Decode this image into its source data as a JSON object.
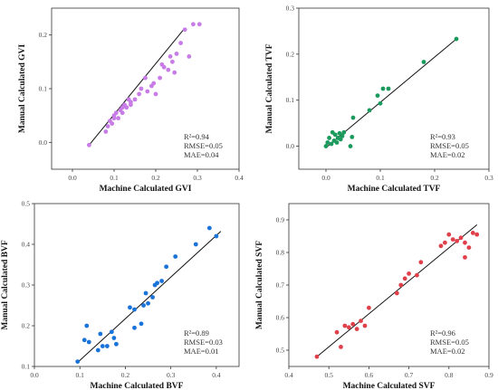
{
  "chart_data": [
    {
      "type": "scatter",
      "xlabel": "Machine Calculated GVI",
      "ylabel": "Manual Calculated GVI",
      "xlim": [
        -0.05,
        0.4
      ],
      "ylim": [
        -0.05,
        0.25
      ],
      "xticks": [
        "0.0",
        "0.1",
        "0.2",
        "0.3",
        "0.4"
      ],
      "xtick_values": [
        0.0,
        0.1,
        0.2,
        0.3,
        0.4
      ],
      "yticks": [
        "0.0",
        "0.1",
        "0.2"
      ],
      "ytick_values": [
        0.0,
        0.1,
        0.2
      ],
      "color": "#c77ce6",
      "stats": [
        "R²=0.94",
        "RMSE=0.05",
        "MAE=0.04"
      ],
      "fit_line": {
        "x": [
          0.04,
          0.27
        ],
        "y": [
          -0.005,
          0.213
        ]
      },
      "points": [
        [
          0.04,
          -0.005
        ],
        [
          0.08,
          0.02
        ],
        [
          0.085,
          0.03
        ],
        [
          0.09,
          0.04
        ],
        [
          0.095,
          0.035
        ],
        [
          0.1,
          0.045
        ],
        [
          0.1,
          0.05
        ],
        [
          0.105,
          0.055
        ],
        [
          0.11,
          0.045
        ],
        [
          0.115,
          0.06
        ],
        [
          0.12,
          0.065
        ],
        [
          0.12,
          0.055
        ],
        [
          0.125,
          0.07
        ],
        [
          0.13,
          0.065
        ],
        [
          0.135,
          0.08
        ],
        [
          0.14,
          0.075
        ],
        [
          0.14,
          0.07
        ],
        [
          0.15,
          0.08
        ],
        [
          0.16,
          0.09
        ],
        [
          0.165,
          0.1
        ],
        [
          0.175,
          0.12
        ],
        [
          0.18,
          0.095
        ],
        [
          0.19,
          0.105
        ],
        [
          0.195,
          0.11
        ],
        [
          0.2,
          0.09
        ],
        [
          0.21,
          0.12
        ],
        [
          0.215,
          0.145
        ],
        [
          0.22,
          0.14
        ],
        [
          0.23,
          0.135
        ],
        [
          0.235,
          0.16
        ],
        [
          0.24,
          0.15
        ],
        [
          0.245,
          0.13
        ],
        [
          0.25,
          0.165
        ],
        [
          0.26,
          0.185
        ],
        [
          0.27,
          0.21
        ],
        [
          0.28,
          0.16
        ],
        [
          0.29,
          0.22
        ],
        [
          0.305,
          0.22
        ]
      ]
    },
    {
      "type": "scatter",
      "xlabel": "Machine Calculated TVF",
      "ylabel": "Manual Calculated TVF",
      "xlim": [
        -0.05,
        0.3
      ],
      "ylim": [
        -0.05,
        0.3
      ],
      "xticks": [
        "0.0",
        "0.1",
        "0.2",
        "0.3"
      ],
      "xtick_values": [
        0.0,
        0.1,
        0.2,
        0.3
      ],
      "yticks": [
        "0.0",
        "0.1",
        "0.2",
        "0.3"
      ],
      "ytick_values": [
        0.0,
        0.1,
        0.2,
        0.3
      ],
      "color": "#1a9a5c",
      "stats": [
        "R²=0.93",
        "RMSE=0.05",
        "MAE=0.02"
      ],
      "fit_line": {
        "x": [
          0.0,
          0.24
        ],
        "y": [
          -0.003,
          0.233
        ]
      },
      "points": [
        [
          0.0,
          0.0
        ],
        [
          0.003,
          0.008
        ],
        [
          0.006,
          0.018
        ],
        [
          0.01,
          0.005
        ],
        [
          0.012,
          0.03
        ],
        [
          0.015,
          0.012
        ],
        [
          0.017,
          0.025
        ],
        [
          0.02,
          0.008
        ],
        [
          0.022,
          0.018
        ],
        [
          0.025,
          0.028
        ],
        [
          0.027,
          0.015
        ],
        [
          0.03,
          0.022
        ],
        [
          0.033,
          0.03
        ],
        [
          0.045,
          0.0
        ],
        [
          0.048,
          0.02
        ],
        [
          0.05,
          0.062
        ],
        [
          0.08,
          0.078
        ],
        [
          0.095,
          0.11
        ],
        [
          0.1,
          0.093
        ],
        [
          0.105,
          0.125
        ],
        [
          0.115,
          0.125
        ],
        [
          0.18,
          0.183
        ],
        [
          0.24,
          0.233
        ]
      ]
    },
    {
      "type": "scatter",
      "xlabel": "Machine Calculated BVF",
      "ylabel": "Manual Calculated BVF",
      "xlim": [
        0.0,
        0.45
      ],
      "ylim": [
        0.1,
        0.5
      ],
      "xticks": [
        "0.0",
        "0.1",
        "0.2",
        "0.3",
        "0.4"
      ],
      "xtick_values": [
        0.0,
        0.1,
        0.2,
        0.3,
        0.4
      ],
      "yticks": [
        "0.1",
        "0.2",
        "0.3",
        "0.4",
        "0.5"
      ],
      "ytick_values": [
        0.1,
        0.2,
        0.3,
        0.4,
        0.5
      ],
      "color": "#1a73d9",
      "stats": [
        "R²=0.89",
        "RMSE=0.03",
        "MAE=0.01"
      ],
      "fit_line": {
        "x": [
          0.095,
          0.41
        ],
        "y": [
          0.11,
          0.432
        ]
      },
      "points": [
        [
          0.095,
          0.112
        ],
        [
          0.11,
          0.165
        ],
        [
          0.115,
          0.2
        ],
        [
          0.12,
          0.16
        ],
        [
          0.14,
          0.14
        ],
        [
          0.145,
          0.18
        ],
        [
          0.15,
          0.15
        ],
        [
          0.16,
          0.15
        ],
        [
          0.17,
          0.185
        ],
        [
          0.175,
          0.17
        ],
        [
          0.18,
          0.155
        ],
        [
          0.21,
          0.245
        ],
        [
          0.22,
          0.195
        ],
        [
          0.22,
          0.24
        ],
        [
          0.235,
          0.205
        ],
        [
          0.24,
          0.25
        ],
        [
          0.245,
          0.28
        ],
        [
          0.25,
          0.255
        ],
        [
          0.26,
          0.27
        ],
        [
          0.265,
          0.3
        ],
        [
          0.27,
          0.305
        ],
        [
          0.28,
          0.31
        ],
        [
          0.29,
          0.345
        ],
        [
          0.31,
          0.37
        ],
        [
          0.355,
          0.4
        ],
        [
          0.385,
          0.44
        ],
        [
          0.4,
          0.42
        ]
      ]
    },
    {
      "type": "scatter",
      "xlabel": "Machine Calculated SVF",
      "ylabel": "Manual Calculated SVF",
      "xlim": [
        0.4,
        0.9
      ],
      "ylim": [
        0.45,
        0.95
      ],
      "xticks": [
        "0.4",
        "0.5",
        "0.6",
        "0.7",
        "0.8",
        "0.9"
      ],
      "xtick_values": [
        0.4,
        0.5,
        0.6,
        0.7,
        0.8,
        0.9
      ],
      "yticks": [
        "0.5",
        "0.6",
        "0.7",
        "0.8",
        "0.9"
      ],
      "ytick_values": [
        0.5,
        0.6,
        0.7,
        0.8,
        0.9
      ],
      "color": "#e0404a",
      "stats": [
        "R²=0.96",
        "RMSE=0.05",
        "MAE=0.02"
      ],
      "fit_line": {
        "x": [
          0.47,
          0.87
        ],
        "y": [
          0.48,
          0.885
        ]
      },
      "points": [
        [
          0.47,
          0.48
        ],
        [
          0.52,
          0.555
        ],
        [
          0.53,
          0.51
        ],
        [
          0.54,
          0.575
        ],
        [
          0.55,
          0.57
        ],
        [
          0.56,
          0.58
        ],
        [
          0.57,
          0.565
        ],
        [
          0.58,
          0.59
        ],
        [
          0.59,
          0.575
        ],
        [
          0.6,
          0.63
        ],
        [
          0.67,
          0.675
        ],
        [
          0.68,
          0.7
        ],
        [
          0.69,
          0.72
        ],
        [
          0.7,
          0.735
        ],
        [
          0.72,
          0.73
        ],
        [
          0.73,
          0.77
        ],
        [
          0.78,
          0.82
        ],
        [
          0.79,
          0.83
        ],
        [
          0.8,
          0.855
        ],
        [
          0.81,
          0.84
        ],
        [
          0.82,
          0.835
        ],
        [
          0.83,
          0.845
        ],
        [
          0.84,
          0.785
        ],
        [
          0.84,
          0.83
        ],
        [
          0.85,
          0.815
        ],
        [
          0.86,
          0.86
        ],
        [
          0.87,
          0.855
        ]
      ]
    }
  ]
}
